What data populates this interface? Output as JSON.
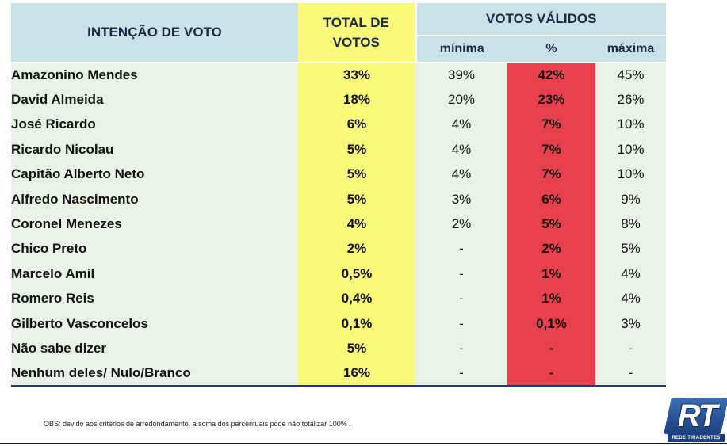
{
  "header": {
    "intencao": "INTENÇÃO DE VOTO",
    "total_line1": "TOTAL DE",
    "total_line2": "VOTOS",
    "votos_validos": "VOTOS VÁLIDOS",
    "minima": "mínima",
    "pct": "%",
    "maxima": "máxima"
  },
  "rows": [
    {
      "name": "Amazonino Mendes",
      "total": "33%",
      "minima": "39%",
      "pct": "42%",
      "maxima": "45%"
    },
    {
      "name": "David Almeida",
      "total": "18%",
      "minima": "20%",
      "pct": "23%",
      "maxima": "26%"
    },
    {
      "name": "José Ricardo",
      "total": "6%",
      "minima": "4%",
      "pct": "7%",
      "maxima": "10%"
    },
    {
      "name": "Ricardo Nicolau",
      "total": "5%",
      "minima": "4%",
      "pct": "7%",
      "maxima": "10%"
    },
    {
      "name": "Capitão Alberto Neto",
      "total": "5%",
      "minima": "4%",
      "pct": "7%",
      "maxima": "10%"
    },
    {
      "name": "Alfredo Nascimento",
      "total": "5%",
      "minima": "3%",
      "pct": "6%",
      "maxima": "9%"
    },
    {
      "name": "Coronel Menezes",
      "total": "4%",
      "minima": "2%",
      "pct": "5%",
      "maxima": "8%"
    },
    {
      "name": "Chico Preto",
      "total": "2%",
      "minima": "-",
      "pct": "2%",
      "maxima": "5%"
    },
    {
      "name": "Marcelo Amil",
      "total": "0,5%",
      "minima": "-",
      "pct": "1%",
      "maxima": "4%"
    },
    {
      "name": "Romero Reis",
      "total": "0,4%",
      "minima": "-",
      "pct": "1%",
      "maxima": "4%"
    },
    {
      "name": "Gilberto Vasconcelos",
      "total": "0,1%",
      "minima": "-",
      "pct": "0,1%",
      "maxima": "3%"
    },
    {
      "name": "Não sabe dizer",
      "total": "5%",
      "minima": "-",
      "pct": "-",
      "maxima": "-"
    },
    {
      "name": "Nenhum deles/ Nulo/Branco",
      "total": "16%",
      "minima": "-",
      "pct": "-",
      "maxima": "-"
    }
  ],
  "footnote": "OBS: devido aos critérios de arredondamento, a soma dos percentuais pode não totalizar 100% .",
  "logo": {
    "letters": "RT",
    "caption": "REDE TIRADENTES"
  }
}
